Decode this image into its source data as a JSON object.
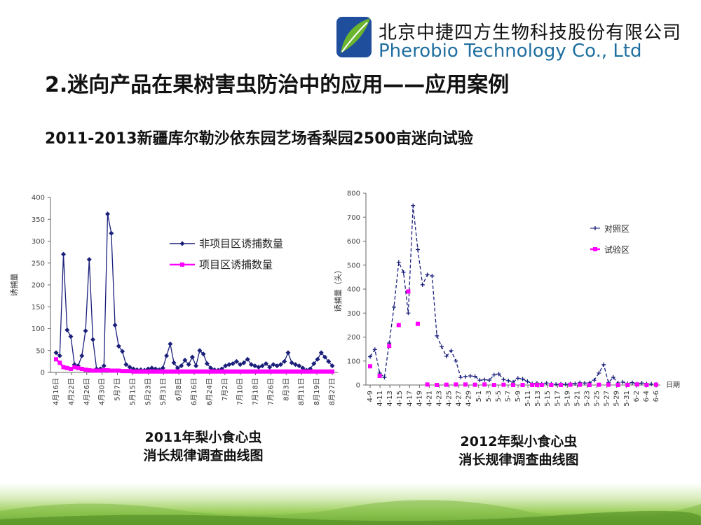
{
  "header": {
    "company_cn": "北京中捷四方生物科技股份有限公司",
    "company_en": "Pherobio Technology Co., Ltd",
    "logo_icon": "leaf-logo-icon",
    "brand_colors": {
      "blue": "#1f4e9c",
      "green": "#6bb52e"
    }
  },
  "slide_title": "2.迷向产品在果树害虫防治中的应用——应用案例",
  "subtitle": "2011-2013新疆库尔勒沙依东园艺场香梨园2500亩迷向试验",
  "captions": {
    "chart1_line1": "2011年梨小食心虫",
    "chart1_line2": "消长规律调查曲线图",
    "chart2_line1": "2012年梨小食心虫",
    "chart2_line2": "消长规律调查曲线图"
  },
  "chart_data": [
    {
      "type": "line",
      "ylabel": "诱捕量",
      "ylim": [
        0,
        400
      ],
      "yticks": [
        0,
        50,
        100,
        150,
        200,
        250,
        300,
        350,
        400
      ],
      "xtick_labels": [
        "4月16日",
        "4月22日",
        "4月26日",
        "4月30日",
        "5月7日",
        "5月15日",
        "5月23日",
        "5月31日",
        "6月8日",
        "6月16日",
        "6月24日",
        "7月2日",
        "7月10日",
        "7月18日",
        "7月26日",
        "8月3日",
        "8月11日",
        "8月19日",
        "8月27日"
      ],
      "legend_position": "top-right",
      "series": [
        {
          "name": "非项目区诱捕数量",
          "color": "#1a1f7a",
          "marker": "diamond",
          "values": [
            45,
            38,
            270,
            97,
            82,
            18,
            15,
            38,
            95,
            258,
            75,
            8,
            8,
            15,
            362,
            318,
            108,
            60,
            48,
            18,
            12,
            8,
            6,
            6,
            5,
            8,
            10,
            8,
            6,
            10,
            38,
            65,
            22,
            10,
            15,
            28,
            18,
            35,
            15,
            50,
            42,
            20,
            10,
            6,
            5,
            8,
            15,
            18,
            20,
            25,
            18,
            22,
            30,
            18,
            15,
            12,
            15,
            20,
            12,
            18,
            15,
            18,
            25,
            45,
            22,
            18,
            15,
            10,
            5,
            8,
            20,
            30,
            45,
            35,
            25,
            15
          ]
        },
        {
          "name": "项目区诱捕数量",
          "color": "#ff00ff",
          "marker": "square",
          "values": [
            30,
            22,
            12,
            10,
            8,
            12,
            10,
            8,
            6,
            5,
            4,
            4,
            4,
            5,
            5,
            4,
            4,
            4,
            3,
            3,
            3,
            2,
            2,
            2,
            2,
            2,
            2,
            2,
            2,
            2,
            2,
            2,
            2,
            2,
            2,
            2,
            2,
            2,
            2,
            2,
            2,
            2,
            2,
            2,
            2,
            2,
            2,
            2,
            2,
            2,
            2,
            2,
            2,
            2,
            2,
            2,
            2,
            2,
            2,
            2,
            2,
            2,
            2,
            2,
            2,
            2,
            2,
            2,
            2,
            2,
            2,
            2,
            2,
            2,
            2,
            2
          ]
        }
      ]
    },
    {
      "type": "line",
      "ylabel": "诱捕量（头）",
      "xlabel": "日期",
      "ylim": [
        0,
        800
      ],
      "yticks": [
        0,
        100,
        200,
        300,
        400,
        500,
        600,
        700,
        800
      ],
      "xtick_labels": [
        "4-9",
        "4-11",
        "4-13",
        "4-15",
        "4-17",
        "4-19",
        "4-21",
        "4-23",
        "4-25",
        "4-27",
        "4-29",
        "5-1",
        "5-3",
        "5-5",
        "5-7",
        "5-9",
        "5-11",
        "5-13",
        "5-15",
        "5-17",
        "5-19",
        "5-21",
        "5-23",
        "5-25",
        "5-27",
        "5-29",
        "5-31",
        "6-2",
        "6-4",
        "6-6"
      ],
      "legend_position": "top-right",
      "series": [
        {
          "name": "对照区",
          "color": "#1a1f7a",
          "marker": "plus",
          "values": [
            118,
            148,
            50,
            32,
            175,
            325,
            512,
            470,
            300,
            748,
            565,
            418,
            460,
            455,
            205,
            160,
            120,
            143,
            100,
            32,
            35,
            38,
            36,
            20,
            22,
            20,
            42,
            46,
            23,
            18,
            12,
            28,
            25,
            15,
            5,
            8,
            4,
            8,
            5,
            3,
            4,
            3,
            5,
            6,
            10,
            8,
            9,
            20,
            50,
            85,
            10,
            32,
            8,
            12,
            6,
            10,
            4,
            8,
            5,
            4,
            3
          ]
        },
        {
          "name": "试验区",
          "color": "#ff00ff",
          "marker": "square",
          "values": [
            78,
            null,
            38,
            null,
            163,
            null,
            250,
            null,
            390,
            null,
            255,
            null,
            2,
            null,
            0,
            null,
            1,
            null,
            2,
            null,
            2,
            null,
            1,
            null,
            2,
            null,
            0,
            null,
            1,
            null,
            0,
            null,
            0,
            null,
            0,
            0,
            0,
            null,
            0,
            null,
            0,
            null,
            1,
            null,
            1,
            null,
            0,
            null,
            1,
            null,
            1,
            null,
            0,
            null,
            0,
            null,
            2,
            null,
            0,
            null,
            1
          ]
        }
      ]
    }
  ]
}
